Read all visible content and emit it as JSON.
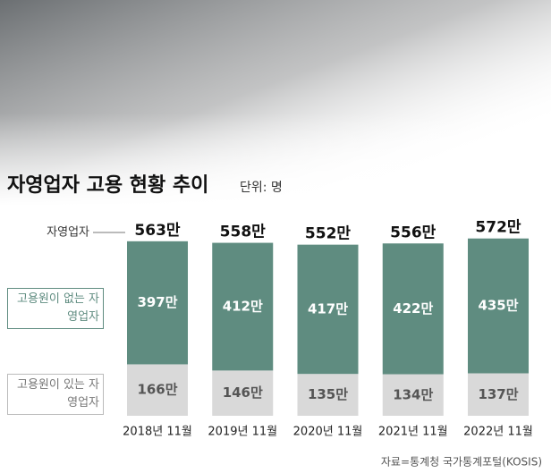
{
  "chart_data": {
    "type": "stacked_bar",
    "title": "자영업자 고용 현황 추이",
    "subtitle": "단위: 명",
    "source": "자료=통계청 국가통계포털(KOSIS)",
    "categories": [
      "2018년 11월",
      "2019년 11월",
      "2020년 11월",
      "2021년 11월",
      "2022년 11월"
    ],
    "series": [
      {
        "name": "고용원이 있는 자영업자",
        "color": "#d9d9d9",
        "label_color": "#555555",
        "values": [
          166,
          146,
          135,
          134,
          137
        ],
        "value_labels": [
          "166만",
          "146만",
          "135만",
          "134만",
          "137만"
        ]
      },
      {
        "name": "고용원이 없는 자영업자",
        "color": "#5f8c80",
        "label_color": "#ffffff",
        "values": [
          397,
          412,
          417,
          422,
          435
        ],
        "value_labels": [
          "397만",
          "412만",
          "417만",
          "422만",
          "435만"
        ]
      }
    ],
    "totals": {
      "name": "자영업자",
      "values": [
        563,
        558,
        552,
        556,
        572
      ],
      "value_labels": [
        "563만",
        "558만",
        "552만",
        "556만",
        "572만"
      ]
    },
    "ylim": [
      0,
      600
    ]
  }
}
